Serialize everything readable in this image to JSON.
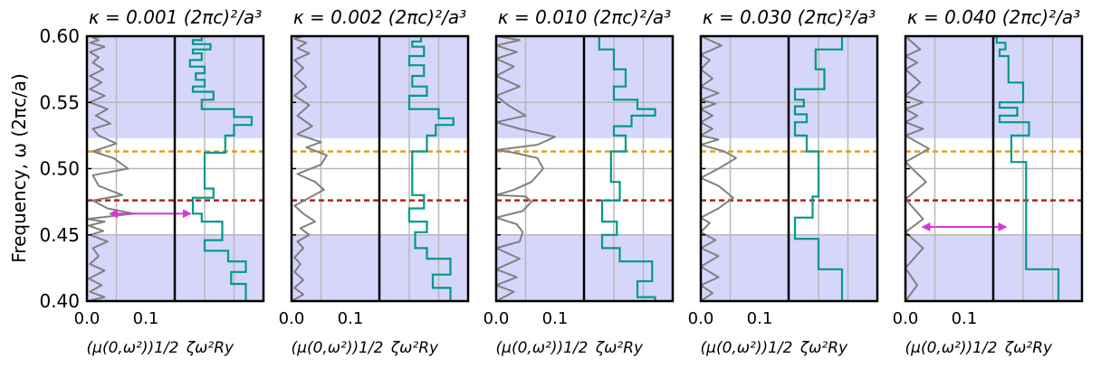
{
  "figure": {
    "ylabel": "Frequency, ω (2πc/a)",
    "ylim": [
      0.4,
      0.6
    ],
    "yticks": [
      "0.40",
      "0.45",
      "0.50",
      "0.55",
      "0.60"
    ],
    "left_xticks": [
      "0.0",
      "0.1"
    ],
    "left_xlabel": "(μ(0,ω²))1/2",
    "right_xlabel": "ζω²Ry",
    "orange_line": 0.513,
    "red_line": 0.476,
    "shade_color": "#d6d6fb",
    "grey_line_color": "#808080",
    "teal_line_color": "#00998a",
    "orange_color": "#e0a020",
    "red_color": "#b22222",
    "arrow_color": "#dd33dd"
  },
  "chart_data": [
    {
      "type": "line",
      "title": "κ = 0.001 (2πc)²/a³",
      "shade_below": 0.45,
      "shade_above": 0.523,
      "arrow": {
        "y": 0.466,
        "x1": 0.04,
        "x2": 0.175
      },
      "grey_series": {
        "x": [
          0.0,
          0.03,
          0.005,
          0.025,
          0.003,
          0.03,
          0.005,
          0.02,
          0.01,
          0.035,
          0.005,
          0.028,
          0.003,
          0.03,
          0.0,
          0.04,
          0.08,
          0.035,
          0.01,
          0.06,
          0.02,
          0.01,
          0.07,
          0.045,
          0.01,
          0.05,
          0.02,
          0.01,
          0.04,
          0.015,
          0.035,
          0.005,
          0.03,
          0.005,
          0.025,
          0.005,
          0.028,
          0.01,
          0.02,
          0.005,
          0.03,
          0.005,
          0.02,
          0.01,
          0.03
        ],
        "y": [
          0.4,
          0.403,
          0.407,
          0.412,
          0.417,
          0.423,
          0.428,
          0.434,
          0.44,
          0.445,
          0.45,
          0.453,
          0.457,
          0.46,
          0.462,
          0.464,
          0.466,
          0.47,
          0.476,
          0.48,
          0.487,
          0.495,
          0.5,
          0.508,
          0.513,
          0.519,
          0.525,
          0.53,
          0.534,
          0.54,
          0.545,
          0.55,
          0.555,
          0.56,
          0.565,
          0.57,
          0.575,
          0.58,
          0.584,
          0.588,
          0.592,
          0.595,
          0.597,
          0.599,
          0.6
        ]
      },
      "teal_series": {
        "x": [
          0.27,
          0.27,
          0.245,
          0.245,
          0.27,
          0.27,
          0.24,
          0.24,
          0.2,
          0.2,
          0.23,
          0.23,
          0.195,
          0.195,
          0.18,
          0.18,
          0.215,
          0.215,
          0.2,
          0.2,
          0.235,
          0.235,
          0.25,
          0.25,
          0.28,
          0.28,
          0.25,
          0.25,
          0.195,
          0.195,
          0.215,
          0.215,
          0.18,
          0.18,
          0.2,
          0.2,
          0.185,
          0.185,
          0.2,
          0.2,
          0.175,
          0.175,
          0.195,
          0.195,
          0.18,
          0.18,
          0.21,
          0.21,
          0.18,
          0.18,
          0.195,
          0.195
        ],
        "y": [
          0.4,
          0.413,
          0.413,
          0.422,
          0.422,
          0.43,
          0.43,
          0.438,
          0.438,
          0.446,
          0.446,
          0.46,
          0.46,
          0.466,
          0.466,
          0.478,
          0.478,
          0.485,
          0.485,
          0.512,
          0.512,
          0.525,
          0.525,
          0.533,
          0.533,
          0.539,
          0.539,
          0.545,
          0.545,
          0.552,
          0.552,
          0.558,
          0.558,
          0.562,
          0.562,
          0.567,
          0.567,
          0.572,
          0.572,
          0.577,
          0.577,
          0.582,
          0.582,
          0.587,
          0.587,
          0.59,
          0.59,
          0.594,
          0.594,
          0.597,
          0.597,
          0.6
        ]
      }
    },
    {
      "type": "line",
      "title": "κ = 0.002 (2πc)²/a³",
      "shade_below": 0.45,
      "shade_above": 0.523,
      "arrow": null,
      "grey_series": {
        "x": [
          0.0,
          0.02,
          0.005,
          0.02,
          0.005,
          0.015,
          0.005,
          0.02,
          0.01,
          0.03,
          0.015,
          0.04,
          0.02,
          0.005,
          0.03,
          0.055,
          0.04,
          0.01,
          0.05,
          0.06,
          0.025,
          0.05,
          0.01,
          0.035,
          0.01,
          0.03,
          0.005,
          0.025,
          0.005,
          0.02,
          0.005,
          0.03,
          0.01,
          0.025,
          0.005,
          0.02
        ],
        "y": [
          0.4,
          0.405,
          0.41,
          0.416,
          0.422,
          0.428,
          0.433,
          0.44,
          0.445,
          0.45,
          0.455,
          0.46,
          0.466,
          0.472,
          0.478,
          0.484,
          0.49,
          0.496,
          0.503,
          0.51,
          0.516,
          0.52,
          0.526,
          0.532,
          0.54,
          0.548,
          0.555,
          0.562,
          0.57,
          0.576,
          0.582,
          0.587,
          0.591,
          0.595,
          0.598,
          0.6
        ]
      },
      "teal_series": {
        "x": [
          0.27,
          0.27,
          0.24,
          0.24,
          0.27,
          0.27,
          0.23,
          0.23,
          0.21,
          0.21,
          0.23,
          0.23,
          0.2,
          0.2,
          0.225,
          0.225,
          0.205,
          0.205,
          0.23,
          0.23,
          0.245,
          0.245,
          0.275,
          0.275,
          0.25,
          0.25,
          0.2,
          0.2,
          0.23,
          0.23,
          0.205,
          0.205,
          0.225,
          0.225,
          0.2,
          0.2,
          0.225,
          0.225,
          0.205,
          0.205,
          0.22,
          0.22
        ],
        "y": [
          0.4,
          0.41,
          0.41,
          0.42,
          0.42,
          0.432,
          0.432,
          0.44,
          0.44,
          0.452,
          0.452,
          0.46,
          0.46,
          0.47,
          0.47,
          0.48,
          0.48,
          0.513,
          0.513,
          0.525,
          0.525,
          0.533,
          0.533,
          0.538,
          0.538,
          0.545,
          0.545,
          0.555,
          0.555,
          0.562,
          0.562,
          0.57,
          0.57,
          0.578,
          0.578,
          0.585,
          0.585,
          0.592,
          0.592,
          0.596,
          0.596,
          0.6
        ]
      }
    },
    {
      "type": "line",
      "title": "κ = 0.010 (2πc)²/a³",
      "shade_below": 0.45,
      "shade_above": 0.523,
      "arrow": null,
      "grey_series": {
        "x": [
          0.0,
          0.03,
          0.0,
          0.035,
          0.0,
          0.04,
          0.0,
          0.04,
          0.045,
          0.035,
          0.0,
          0.045,
          0.06,
          0.05,
          0.0,
          0.03,
          0.06,
          0.08,
          0.07,
          0.03,
          0.0,
          0.07,
          0.1,
          0.04,
          0.0,
          0.05,
          0.02,
          0.0,
          0.04,
          0.0,
          0.03,
          0.0,
          0.035,
          0.0,
          0.04,
          0.0
        ],
        "y": [
          0.4,
          0.407,
          0.412,
          0.418,
          0.424,
          0.432,
          0.44,
          0.445,
          0.452,
          0.458,
          0.463,
          0.468,
          0.475,
          0.479,
          0.48,
          0.484,
          0.49,
          0.5,
          0.508,
          0.512,
          0.514,
          0.518,
          0.524,
          0.53,
          0.535,
          0.54,
          0.548,
          0.555,
          0.562,
          0.57,
          0.577,
          0.583,
          0.588,
          0.593,
          0.597,
          0.6
        ]
      },
      "teal_series": {
        "x": [
          0.27,
          0.27,
          0.24,
          0.24,
          0.265,
          0.265,
          0.21,
          0.21,
          0.18,
          0.18,
          0.205,
          0.205,
          0.18,
          0.18,
          0.21,
          0.21,
          0.195,
          0.195,
          0.22,
          0.22,
          0.2,
          0.2,
          0.23,
          0.23,
          0.27,
          0.27,
          0.24,
          0.24,
          0.2,
          0.2,
          0.22,
          0.22,
          0.2,
          0.2,
          0.175,
          0.175
        ],
        "y": [
          0.4,
          0.403,
          0.403,
          0.415,
          0.415,
          0.43,
          0.43,
          0.44,
          0.44,
          0.45,
          0.45,
          0.46,
          0.46,
          0.476,
          0.476,
          0.49,
          0.49,
          0.513,
          0.513,
          0.525,
          0.525,
          0.532,
          0.532,
          0.54,
          0.54,
          0.545,
          0.545,
          0.552,
          0.552,
          0.562,
          0.562,
          0.575,
          0.575,
          0.59,
          0.59,
          0.6
        ]
      }
    },
    {
      "type": "line",
      "title": "κ = 0.030 (2πc)²/a³",
      "shade_below": 0.45,
      "shade_above": 0.523,
      "arrow": null,
      "grey_series": {
        "x": [
          0.0,
          0.02,
          0.0,
          0.03,
          0.0,
          0.03,
          0.0,
          0.025,
          0.0,
          0.015,
          0.0,
          0.03,
          0.055,
          0.03,
          0.0,
          0.03,
          0.06,
          0.04,
          0.0,
          0.03,
          0.0,
          0.02,
          0.0,
          0.02,
          0.0,
          0.025,
          0.0,
          0.03,
          0.0,
          0.02,
          0.0,
          0.015,
          0.0,
          0.035,
          0.0
        ],
        "y": [
          0.4,
          0.406,
          0.412,
          0.418,
          0.426,
          0.434,
          0.44,
          0.446,
          0.452,
          0.459,
          0.463,
          0.47,
          0.478,
          0.487,
          0.493,
          0.5,
          0.508,
          0.513,
          0.518,
          0.522,
          0.525,
          0.53,
          0.535,
          0.54,
          0.545,
          0.549,
          0.552,
          0.557,
          0.562,
          0.568,
          0.575,
          0.582,
          0.586,
          0.593,
          0.6
        ]
      },
      "teal_series": {
        "x": [
          0.24,
          0.24,
          0.2,
          0.2,
          0.16,
          0.16,
          0.19,
          0.19,
          0.2,
          0.2,
          0.18,
          0.18,
          0.16,
          0.16,
          0.18,
          0.18,
          0.16,
          0.16,
          0.175,
          0.175,
          0.16,
          0.16,
          0.21,
          0.21,
          0.195,
          0.195,
          0.24,
          0.24
        ],
        "y": [
          0.4,
          0.424,
          0.424,
          0.447,
          0.447,
          0.463,
          0.463,
          0.479,
          0.479,
          0.513,
          0.513,
          0.525,
          0.525,
          0.535,
          0.535,
          0.541,
          0.541,
          0.547,
          0.547,
          0.552,
          0.552,
          0.56,
          0.56,
          0.575,
          0.575,
          0.59,
          0.59,
          0.6
        ]
      }
    },
    {
      "type": "line",
      "title": "κ = 0.040 (2πc)²/a³",
      "shade_below": 0.45,
      "shade_above": 0.523,
      "arrow": {
        "y": 0.456,
        "x1": 0.03,
        "x2": 0.17
      },
      "grey_series": {
        "x": [
          0.0,
          0.02,
          0.0,
          0.03,
          0.0,
          0.03,
          0.0,
          0.035,
          0.0,
          0.04,
          0.02,
          0.0,
          0.03,
          0.0,
          0.02,
          0.0,
          0.03,
          0.0,
          0.025,
          0.0,
          0.02,
          0.0,
          0.025,
          0.0
        ],
        "y": [
          0.4,
          0.412,
          0.425,
          0.44,
          0.452,
          0.462,
          0.477,
          0.49,
          0.505,
          0.515,
          0.52,
          0.525,
          0.53,
          0.535,
          0.54,
          0.545,
          0.55,
          0.555,
          0.565,
          0.575,
          0.58,
          0.585,
          0.59,
          0.6
        ]
      },
      "teal_series": {
        "x": [
          0.26,
          0.26,
          0.205,
          0.205,
          0.18,
          0.18,
          0.21,
          0.21,
          0.16,
          0.16,
          0.19,
          0.19,
          0.16,
          0.16,
          0.2,
          0.2,
          0.175,
          0.175,
          0.16,
          0.16,
          0.17,
          0.17,
          0.155,
          0.155
        ],
        "y": [
          0.4,
          0.424,
          0.424,
          0.505,
          0.505,
          0.525,
          0.525,
          0.535,
          0.535,
          0.54,
          0.54,
          0.546,
          0.546,
          0.55,
          0.55,
          0.565,
          0.565,
          0.585,
          0.585,
          0.59,
          0.59,
          0.595,
          0.595,
          0.6
        ]
      }
    }
  ]
}
